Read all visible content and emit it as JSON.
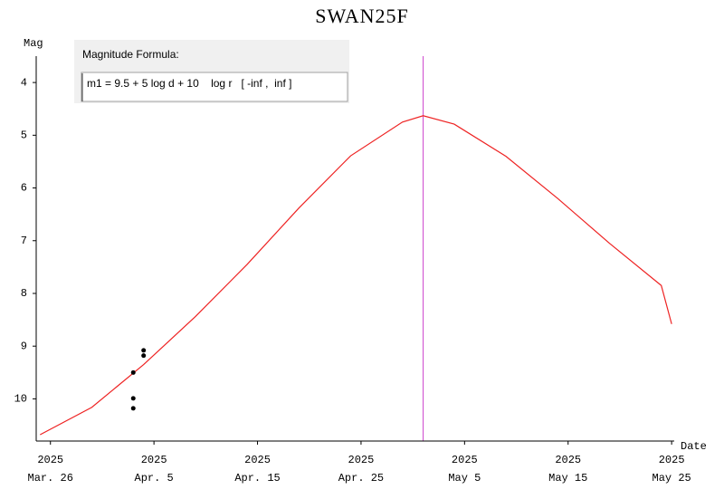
{
  "chart_data": {
    "type": "line",
    "title": "SWAN25F",
    "y_label": "Mag",
    "x_label": "Date",
    "formula_title": "Magnitude Formula:",
    "formula": "m1 = 9.5 + 5 log d + 10    log r   [ -inf ,  inf ]",
    "x": [
      "2025-03-25",
      "2025-03-30",
      "2025-04-04",
      "2025-04-09",
      "2025-04-14",
      "2025-04-19",
      "2025-04-24",
      "2025-04-29",
      "2025-05-01",
      "2025-05-04",
      "2025-05-09",
      "2025-05-14",
      "2025-05-19",
      "2025-05-24",
      "2025-05-25"
    ],
    "values": [
      10.68,
      10.16,
      9.35,
      8.44,
      7.45,
      6.38,
      5.39,
      4.75,
      4.63,
      4.79,
      5.4,
      6.2,
      7.05,
      7.85,
      8.58
    ],
    "color": "#ee2222",
    "observations": {
      "x": [
        "2025-04-03",
        "2025-04-03",
        "2025-04-03",
        "2025-04-04",
        "2025-04-04"
      ],
      "values": [
        9.5,
        9.99,
        10.18,
        9.08,
        9.18
      ],
      "color": "#000000"
    },
    "marker_date": "2025-05-01",
    "marker_color": "#cc44cc",
    "xlim": [
      "2025-03-24T15:00",
      "2025-05-25T06:00"
    ],
    "xticks": [
      {
        "value": "2025-03-26",
        "label": [
          "2025",
          "Mar. 26"
        ]
      },
      {
        "value": "2025-04-05",
        "label": [
          "2025",
          "Apr. 5"
        ]
      },
      {
        "value": "2025-04-15",
        "label": [
          "2025",
          "Apr. 15"
        ]
      },
      {
        "value": "2025-04-25",
        "label": [
          "2025",
          "Apr. 25"
        ]
      },
      {
        "value": "2025-05-05",
        "label": [
          "2025",
          "May 5"
        ]
      },
      {
        "value": "2025-05-15",
        "label": [
          "2025",
          "May 15"
        ]
      },
      {
        "value": "2025-05-25",
        "label": [
          "2025",
          "May 25"
        ]
      }
    ],
    "ylim": [
      3.5,
      10.8
    ],
    "yticks": [
      4,
      5,
      6,
      7,
      8,
      9,
      10
    ]
  }
}
